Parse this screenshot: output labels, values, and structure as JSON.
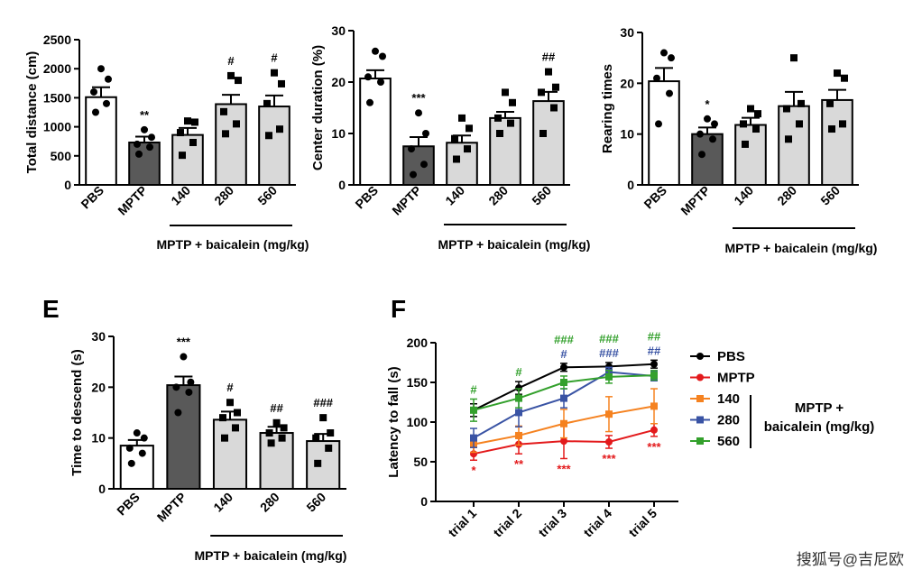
{
  "watermark": "搜狐号@吉尼欧",
  "group_label": "MPTP + baicalein (mg/kg)",
  "chart_data": [
    {
      "type": "bar",
      "ylabel": "Total distance (cm)",
      "ylim": [
        0,
        2500
      ],
      "yticks": [
        "0",
        "500",
        "1000",
        "1500",
        "2000",
        "2500"
      ],
      "categories": [
        "PBS",
        "MPTP",
        "140",
        "280",
        "560"
      ],
      "values": [
        1510,
        730,
        860,
        1390,
        1350
      ],
      "errors": [
        170,
        100,
        120,
        160,
        190
      ],
      "points": [
        [
          2000,
          1820,
          1600,
          1400,
          1250
        ],
        [
          950,
          820,
          700,
          650,
          530
        ],
        [
          1100,
          1080,
          900,
          730,
          510
        ],
        [
          1880,
          1800,
          1260,
          1050,
          880
        ],
        [
          1930,
          1740,
          1400,
          960,
          850
        ]
      ],
      "annotations": [
        "",
        "**",
        "",
        "#",
        "#"
      ],
      "bar_colors": [
        "#ffffff",
        "#595959",
        "#d9d9d9",
        "#d9d9d9",
        "#d9d9d9"
      ],
      "point_markers": [
        "circle",
        "circle",
        "square",
        "square",
        "square"
      ]
    },
    {
      "type": "bar",
      "ylabel": "Center duration (%)",
      "ylim": [
        0,
        30
      ],
      "yticks": [
        "0",
        "10",
        "20",
        "30"
      ],
      "categories": [
        "PBS",
        "MPTP",
        "140",
        "280",
        "560"
      ],
      "values": [
        20.7,
        7.5,
        8.2,
        13.0,
        16.3
      ],
      "errors": [
        1.6,
        1.8,
        1.4,
        1.2,
        1.8
      ],
      "points": [
        [
          26.0,
          25.0,
          21.0,
          20.0,
          16.0
        ],
        [
          14.0,
          10.0,
          7.0,
          4.0,
          2.0
        ],
        [
          13.0,
          11.0,
          9.0,
          7.0,
          5.0
        ],
        [
          18.0,
          16.0,
          13.0,
          12.0,
          10.0
        ],
        [
          22.0,
          19.0,
          18.0,
          15.0,
          10.0
        ]
      ],
      "annotations": [
        "",
        "***",
        "",
        "",
        "##"
      ],
      "bar_colors": [
        "#ffffff",
        "#595959",
        "#d9d9d9",
        "#d9d9d9",
        "#d9d9d9"
      ],
      "point_markers": [
        "circle",
        "circle",
        "square",
        "square",
        "square"
      ]
    },
    {
      "type": "bar",
      "ylabel": "Rearing times",
      "ylim": [
        0,
        30
      ],
      "yticks": [
        "0",
        "10",
        "20",
        "30"
      ],
      "categories": [
        "PBS",
        "MPTP",
        "140",
        "280",
        "560"
      ],
      "values": [
        20.4,
        10.0,
        11.8,
        15.5,
        16.7
      ],
      "errors": [
        2.6,
        1.3,
        1.4,
        2.8,
        2.0
      ],
      "points": [
        [
          26.0,
          25.0,
          21.0,
          18.0,
          12.0
        ],
        [
          13.0,
          12.0,
          10.0,
          9.0,
          6.0
        ],
        [
          15.0,
          14.0,
          12.0,
          11.0,
          8.0
        ],
        [
          25.0,
          16.0,
          15.0,
          12.0,
          9.0
        ],
        [
          22.0,
          21.0,
          16.0,
          12.0,
          11.0
        ]
      ],
      "annotations": [
        "",
        "*",
        "",
        "",
        ""
      ],
      "bar_colors": [
        "#ffffff",
        "#595959",
        "#d9d9d9",
        "#d9d9d9",
        "#d9d9d9"
      ],
      "point_markers": [
        "circle",
        "circle",
        "square",
        "square",
        "square"
      ]
    },
    {
      "type": "bar",
      "panel_label": "E",
      "ylabel": "Time to descend (s)",
      "ylim": [
        0,
        30
      ],
      "yticks": [
        "0",
        "10",
        "20",
        "30"
      ],
      "categories": [
        "PBS",
        "MPTP",
        "140",
        "280",
        "560"
      ],
      "values": [
        8.5,
        20.4,
        13.6,
        11.0,
        9.4
      ],
      "errors": [
        1.1,
        1.7,
        1.6,
        1.2,
        1.4
      ],
      "points": [
        [
          11.0,
          10.0,
          8.0,
          7.0,
          5.0
        ],
        [
          26.0,
          21.0,
          20.0,
          19.0,
          15.0
        ],
        [
          17.0,
          15.0,
          14.0,
          12.0,
          10.0
        ],
        [
          13.0,
          12.0,
          11.0,
          10.0,
          9.0
        ],
        [
          14.0,
          11.0,
          10.0,
          8.0,
          5.0
        ]
      ],
      "annotations": [
        "",
        "***",
        "#",
        "##",
        "###"
      ],
      "bar_colors": [
        "#ffffff",
        "#595959",
        "#d9d9d9",
        "#d9d9d9",
        "#d9d9d9"
      ],
      "point_markers": [
        "circle",
        "circle",
        "square",
        "square",
        "square"
      ]
    },
    {
      "type": "line",
      "panel_label": "F",
      "ylabel": "Latency to fall (s)",
      "ylim": [
        0,
        200
      ],
      "yticks": [
        "0",
        "50",
        "100",
        "150",
        "200"
      ],
      "x": [
        "trial 1",
        "trial 2",
        "trial 3",
        "trial 4",
        "trial 5"
      ],
      "series": [
        {
          "name": "PBS",
          "color": "#000000",
          "marker": "circle",
          "values": [
            115,
            143,
            169,
            170,
            173
          ],
          "errors": [
            8,
            8,
            5,
            5,
            5
          ]
        },
        {
          "name": "MPTP",
          "color": "#e31a1c",
          "marker": "circle",
          "values": [
            60,
            72,
            76,
            75,
            90
          ],
          "errors": [
            8,
            12,
            22,
            8,
            8
          ]
        },
        {
          "name": "140",
          "color": "#f58220",
          "marker": "square",
          "values": [
            72,
            83,
            98,
            110,
            120
          ],
          "errors": [
            10,
            12,
            18,
            22,
            22
          ]
        },
        {
          "name": "280",
          "color": "#3953a4",
          "marker": "square",
          "values": [
            80,
            112,
            130,
            163,
            158
          ],
          "errors": [
            12,
            18,
            12,
            6,
            6
          ]
        },
        {
          "name": "560",
          "color": "#33a02c",
          "marker": "square",
          "values": [
            115,
            130,
            150,
            157,
            159
          ],
          "errors": [
            14,
            12,
            8,
            8,
            6
          ]
        }
      ],
      "annotations": [
        {
          "trial": 0,
          "color": "#33a02c",
          "text": "#",
          "pos": "above"
        },
        {
          "trial": 1,
          "color": "#33a02c",
          "text": "#",
          "pos": "above"
        },
        {
          "trial": 2,
          "color": "#33a02c",
          "text": "###",
          "pos": "above"
        },
        {
          "trial": 2,
          "color": "#3953a4",
          "text": "#",
          "pos": "above2"
        },
        {
          "trial": 3,
          "color": "#33a02c",
          "text": "###",
          "pos": "above"
        },
        {
          "trial": 3,
          "color": "#3953a4",
          "text": "###",
          "pos": "above2"
        },
        {
          "trial": 4,
          "color": "#33a02c",
          "text": "##",
          "pos": "above"
        },
        {
          "trial": 4,
          "color": "#3953a4",
          "text": "##",
          "pos": "above2"
        },
        {
          "trial": 0,
          "color": "#e31a1c",
          "text": "*",
          "pos": "below"
        },
        {
          "trial": 1,
          "color": "#e31a1c",
          "text": "**",
          "pos": "below"
        },
        {
          "trial": 2,
          "color": "#e31a1c",
          "text": "***",
          "pos": "below"
        },
        {
          "trial": 3,
          "color": "#e31a1c",
          "text": "***",
          "pos": "below"
        },
        {
          "trial": 4,
          "color": "#e31a1c",
          "text": "***",
          "pos": "below"
        }
      ],
      "legend_group_label": "MPTP +\nbaicalein (mg/kg)"
    }
  ]
}
